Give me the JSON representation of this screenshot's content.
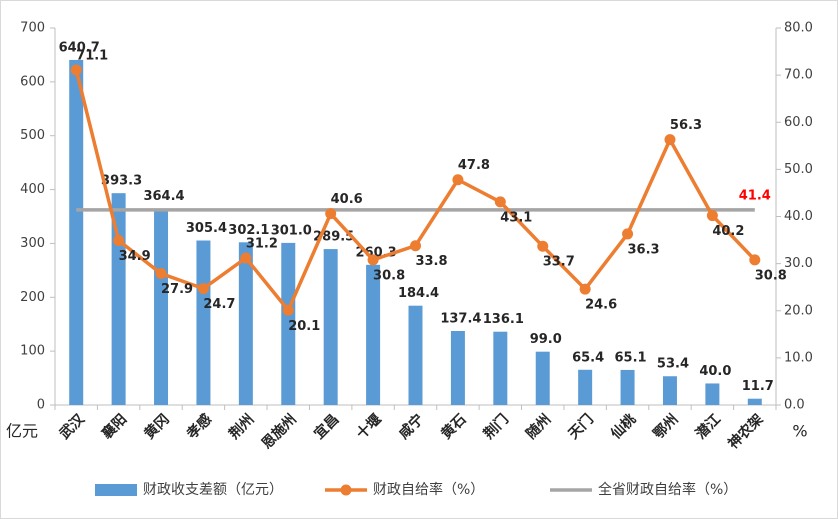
{
  "chart_data": {
    "type": "bar_line",
    "categories": [
      "武汉",
      "襄阳",
      "黄冈",
      "孝感",
      "荆州",
      "恩施州",
      "宜昌",
      "十堰",
      "咸宁",
      "黄石",
      "荆门",
      "随州",
      "天门",
      "仙桃",
      "鄂州",
      "潜江",
      "神农架"
    ],
    "series": [
      {
        "name": "财政收支差额（亿元）",
        "type": "bar",
        "color": "#5b9bd5",
        "values": [
          640.7,
          393.3,
          364.4,
          305.4,
          302.1,
          301.0,
          289.5,
          260.3,
          184.4,
          137.4,
          136.1,
          99.0,
          65.4,
          65.1,
          53.4,
          40.0,
          11.7
        ],
        "value_labels": [
          "640.7",
          "393.3",
          "364.4",
          "305.4",
          "302.1",
          "301.0",
          "289.5",
          "260.3",
          "184.4",
          "137.4",
          "136.1",
          "99.0",
          "65.4",
          "65.1",
          "53.4",
          "40.0",
          "11.7"
        ]
      },
      {
        "name": "财政自给率（%）",
        "type": "line",
        "axis": "y2",
        "color": "#ed7d31",
        "values": [
          71.1,
          34.9,
          27.9,
          24.7,
          31.2,
          20.1,
          40.6,
          30.8,
          33.8,
          47.8,
          43.1,
          33.7,
          24.6,
          36.3,
          56.3,
          40.2,
          30.8
        ]
      }
    ],
    "reference_line": {
      "name": "全省财政自给率（%）",
      "value": 41.4,
      "axis": "y2",
      "color": "#a5a5a5",
      "label_color": "#ff0000"
    },
    "ylabel": "亿元",
    "y2label": "%",
    "ylim": [
      0,
      700
    ],
    "yticks": [
      0,
      100,
      200,
      300,
      400,
      500,
      600,
      700
    ],
    "y2lim": [
      0,
      80
    ],
    "y2ticks": [
      {
        "value": 0,
        "label": "0.0"
      },
      {
        "value": 10,
        "label": "10.0"
      },
      {
        "value": 20,
        "label": "20.0"
      },
      {
        "value": 30,
        "label": "30.0"
      },
      {
        "value": 40,
        "label": "40.0"
      },
      {
        "value": 50,
        "label": "50.0"
      },
      {
        "value": 60,
        "label": "60.0"
      },
      {
        "value": 70,
        "label": "70.0"
      },
      {
        "value": 80,
        "label": "80.0"
      }
    ],
    "legend": "bottom"
  }
}
